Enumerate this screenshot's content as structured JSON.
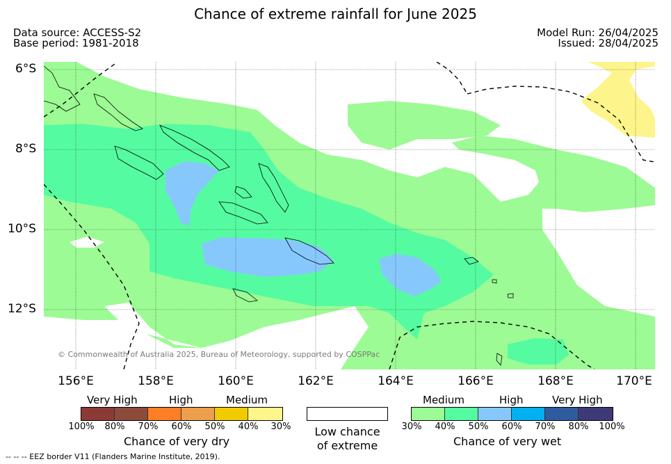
{
  "title": "Chance of extreme rainfall for June 2025",
  "meta_left": {
    "data_source": "Data source: ACCESS-S2",
    "base_period": "Base period: 1981-2018"
  },
  "meta_right": {
    "model_run": "Model Run: 26/04/2025",
    "issued": "Issued: 28/04/2025"
  },
  "map": {
    "lat_labels": [
      "6°S",
      "8°S",
      "10°S",
      "12°S"
    ],
    "lon_labels": [
      "156°E",
      "158°E",
      "160°E",
      "162°E",
      "164°E",
      "166°E",
      "168°E",
      "170°E"
    ],
    "copyright": "© Commonwealth of Australia 2025, Bureau of Meteorology, supported by COSPPac",
    "colors": {
      "medium_wet": "#9cfb94",
      "high_wet": "#55fba0",
      "very_high_wet_50_60": "#87c8fc",
      "medium_dry": "#fdf58b",
      "eez_line": "#000000",
      "coast_line": "#000000"
    }
  },
  "legend": {
    "dry": {
      "category_labels": [
        "Very High",
        "High",
        "Medium"
      ],
      "ticks": [
        "100%",
        "80%",
        "70%",
        "60%",
        "50%",
        "40%",
        "30%"
      ],
      "colors": [
        "#8b3a35",
        "#8d4b3b",
        "#fd7f25",
        "#ed9f4c",
        "#f1cb00",
        "#fef58b"
      ],
      "title": "Chance of very dry"
    },
    "neutral": {
      "line1": "Low chance",
      "line2": "of extreme",
      "color": "#ffffff"
    },
    "wet": {
      "category_labels": [
        "Medium",
        "High",
        "Very High"
      ],
      "ticks": [
        "30%",
        "40%",
        "50%",
        "60%",
        "70%",
        "80%",
        "100%"
      ],
      "colors": [
        "#9cfb94",
        "#55fba0",
        "#87c8fc",
        "#00b0f0",
        "#2f5c9e",
        "#3e3a78"
      ],
      "title": "Chance of very wet"
    }
  },
  "footnote": "--  --  -- EEZ border V11 (Flanders Marine Institute, 2019)."
}
